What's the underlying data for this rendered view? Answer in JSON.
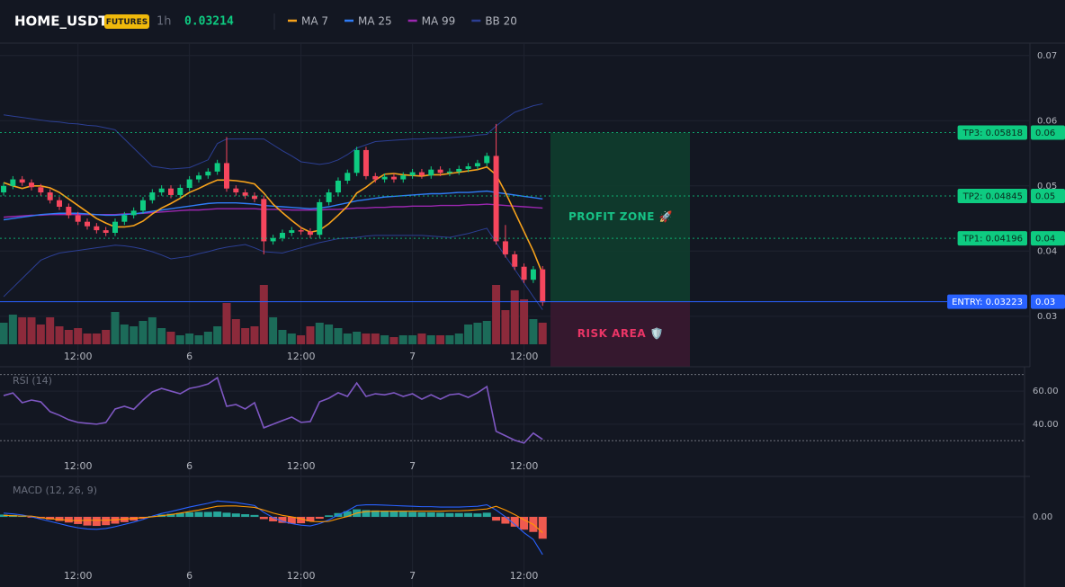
{
  "header": {
    "symbol": "HOME_USDT",
    "badge": "FUTURES",
    "interval": "1h",
    "last_price": 0.03214
  },
  "chart_data": [
    {
      "type": "candlestick",
      "xlim": [
        -0.39,
        110.44
      ],
      "xticks": [
        {
          "value": 8,
          "label": "12:00"
        },
        {
          "value": 20,
          "label": "6"
        },
        {
          "value": 32,
          "label": "12:00"
        },
        {
          "value": 44,
          "label": "7"
        },
        {
          "value": 56,
          "label": "12:00"
        }
      ],
      "ylim": [
        0.0257,
        0.0719
      ],
      "yticks": [
        0.07,
        0.06,
        0.05,
        0.04,
        0.03
      ],
      "grid": true,
      "colors": {
        "up": "#0ecb81",
        "down": "#f6465d"
      },
      "volume_colors": {
        "up": "#1c6b59",
        "down": "#8c2a3b"
      },
      "volume_ylim": [
        0,
        100
      ],
      "open": [
        0.049,
        0.05,
        0.051,
        0.0505,
        0.0498,
        0.049,
        0.0478,
        0.0468,
        0.0455,
        0.0445,
        0.0438,
        0.0432,
        0.0428,
        0.0445,
        0.0455,
        0.0462,
        0.0478,
        0.049,
        0.0496,
        0.0486,
        0.0497,
        0.051,
        0.0516,
        0.0522,
        0.0535,
        0.0496,
        0.049,
        0.0485,
        0.048,
        0.0415,
        0.042,
        0.0428,
        0.0432,
        0.043,
        0.0425,
        0.0475,
        0.049,
        0.0508,
        0.052,
        0.0555,
        0.0515,
        0.051,
        0.0514,
        0.051,
        0.0516,
        0.0521,
        0.0516,
        0.0525,
        0.052,
        0.0522,
        0.0526,
        0.053,
        0.0535,
        0.0546,
        0.0415,
        0.0395,
        0.0376,
        0.0356,
        0.0372
      ],
      "high": [
        0.0505,
        0.0515,
        0.0515,
        0.051,
        0.0503,
        0.0495,
        0.0483,
        0.0473,
        0.046,
        0.045,
        0.0443,
        0.0437,
        0.045,
        0.046,
        0.0467,
        0.0483,
        0.0495,
        0.0501,
        0.0501,
        0.0502,
        0.0515,
        0.0521,
        0.0527,
        0.054,
        0.0575,
        0.0501,
        0.0495,
        0.049,
        0.0485,
        0.0425,
        0.0433,
        0.0437,
        0.0437,
        0.0435,
        0.048,
        0.0495,
        0.0513,
        0.0525,
        0.056,
        0.056,
        0.052,
        0.0519,
        0.0519,
        0.0521,
        0.0526,
        0.0526,
        0.053,
        0.053,
        0.0527,
        0.0531,
        0.0535,
        0.054,
        0.0551,
        0.0595,
        0.044,
        0.04,
        0.0381,
        0.0377,
        0.0377
      ],
      "low": [
        0.0485,
        0.0495,
        0.05,
        0.0493,
        0.0485,
        0.0473,
        0.0463,
        0.045,
        0.044,
        0.0433,
        0.0427,
        0.0423,
        0.0423,
        0.044,
        0.045,
        0.0457,
        0.0473,
        0.0485,
        0.0481,
        0.0481,
        0.0492,
        0.0505,
        0.0511,
        0.0517,
        0.0491,
        0.0485,
        0.048,
        0.0475,
        0.0395,
        0.041,
        0.0415,
        0.0423,
        0.0425,
        0.042,
        0.042,
        0.047,
        0.0485,
        0.0503,
        0.0515,
        0.051,
        0.0505,
        0.0505,
        0.0505,
        0.0505,
        0.0511,
        0.0511,
        0.0511,
        0.0515,
        0.0515,
        0.0517,
        0.0521,
        0.0525,
        0.053,
        0.041,
        0.039,
        0.0371,
        0.0351,
        0.0351,
        0.0316
      ],
      "close": [
        0.05,
        0.051,
        0.0505,
        0.0498,
        0.049,
        0.0478,
        0.0468,
        0.0455,
        0.0445,
        0.0438,
        0.0432,
        0.0428,
        0.0445,
        0.0455,
        0.0462,
        0.0478,
        0.049,
        0.0496,
        0.0486,
        0.0497,
        0.051,
        0.0516,
        0.0522,
        0.0535,
        0.0496,
        0.049,
        0.0485,
        0.048,
        0.0415,
        0.042,
        0.0428,
        0.0432,
        0.043,
        0.0425,
        0.0475,
        0.049,
        0.0508,
        0.052,
        0.0555,
        0.0515,
        0.051,
        0.0514,
        0.051,
        0.0516,
        0.0521,
        0.0516,
        0.0525,
        0.052,
        0.0522,
        0.0526,
        0.053,
        0.0535,
        0.0546,
        0.0415,
        0.0395,
        0.0376,
        0.0356,
        0.0372,
        0.03214
      ],
      "volume": [
        24,
        33,
        30,
        30,
        22,
        30,
        20,
        16,
        18,
        12,
        12,
        16,
        36,
        22,
        20,
        26,
        30,
        18,
        14,
        10,
        12,
        10,
        14,
        20,
        46,
        28,
        18,
        20,
        66,
        30,
        16,
        12,
        10,
        20,
        24,
        22,
        18,
        12,
        14,
        12,
        12,
        10,
        8,
        10,
        10,
        12,
        10,
        10,
        10,
        12,
        22,
        24,
        26,
        66,
        38,
        60,
        50,
        28,
        24
      ],
      "series": [
        {
          "name": "MA 7",
          "color": "#f7a21b",
          "values": [
            0.0505,
            0.05,
            0.0496,
            0.05,
            0.05,
            0.0497,
            0.049,
            0.048,
            0.047,
            0.046,
            0.045,
            0.0443,
            0.0437,
            0.0437,
            0.0439,
            0.0446,
            0.0457,
            0.0466,
            0.0473,
            0.0481,
            0.049,
            0.0496,
            0.0503,
            0.0509,
            0.0509,
            0.0508,
            0.0506,
            0.0503,
            0.0489,
            0.0472,
            0.0459,
            0.0447,
            0.0436,
            0.0429,
            0.0432,
            0.0442,
            0.0455,
            0.0469,
            0.0489,
            0.0498,
            0.0509,
            0.0518,
            0.0519,
            0.0517,
            0.0516,
            0.0515,
            0.0517,
            0.0517,
            0.0519,
            0.0521,
            0.0523,
            0.0525,
            0.0529,
            0.0517,
            0.049,
            0.046,
            0.043,
            0.04,
            0.0365
          ]
        },
        {
          "name": "MA 25",
          "color": "#2f7cf6",
          "values": [
            0.0448,
            0.045,
            0.0452,
            0.0454,
            0.0456,
            0.0457,
            0.0458,
            0.0458,
            0.0458,
            0.0457,
            0.0456,
            0.0455,
            0.0455,
            0.0456,
            0.0457,
            0.0459,
            0.0461,
            0.0463,
            0.0465,
            0.0467,
            0.0469,
            0.0471,
            0.0473,
            0.0474,
            0.0474,
            0.0474,
            0.0473,
            0.0472,
            0.047,
            0.0469,
            0.0468,
            0.0467,
            0.0466,
            0.0465,
            0.0466,
            0.0468,
            0.0471,
            0.0474,
            0.0477,
            0.0479,
            0.0481,
            0.0483,
            0.0484,
            0.0485,
            0.0486,
            0.0487,
            0.0488,
            0.0488,
            0.0489,
            0.049,
            0.049,
            0.0491,
            0.0492,
            0.049,
            0.0488,
            0.0486,
            0.0484,
            0.0482,
            0.048
          ]
        },
        {
          "name": "MA 99",
          "color": "#9c27b0",
          "values": [
            0.0452,
            0.0453,
            0.0454,
            0.0455,
            0.0455,
            0.0456,
            0.0456,
            0.0456,
            0.0456,
            0.0456,
            0.0456,
            0.0456,
            0.0456,
            0.0457,
            0.0457,
            0.0458,
            0.0459,
            0.046,
            0.0461,
            0.0462,
            0.0463,
            0.0463,
            0.0464,
            0.0465,
            0.0465,
            0.0465,
            0.0465,
            0.0465,
            0.0464,
            0.0464,
            0.0464,
            0.0463,
            0.0463,
            0.0463,
            0.0463,
            0.0464,
            0.0464,
            0.0465,
            0.0466,
            0.0466,
            0.0467,
            0.0467,
            0.0468,
            0.0468,
            0.0469,
            0.0469,
            0.0469,
            0.047,
            0.047,
            0.047,
            0.0471,
            0.0471,
            0.0472,
            0.0471,
            0.047,
            0.0469,
            0.0468,
            0.0467,
            0.0466
          ]
        },
        {
          "name": "BB 20",
          "color": "#2c3f94",
          "upper": [
            0.0609,
            0.0607,
            0.0605,
            0.0603,
            0.0601,
            0.0599,
            0.0598,
            0.0596,
            0.0595,
            0.0593,
            0.0592,
            0.0589,
            0.0586,
            0.0572,
            0.0558,
            0.0544,
            0.053,
            0.0528,
            0.0526,
            0.0527,
            0.0528,
            0.0534,
            0.054,
            0.0565,
            0.0572,
            0.0572,
            0.0572,
            0.0572,
            0.0572,
            0.0563,
            0.0554,
            0.0546,
            0.0537,
            0.0535,
            0.0533,
            0.0535,
            0.054,
            0.0548,
            0.0558,
            0.0563,
            0.0568,
            0.0569,
            0.057,
            0.0571,
            0.0572,
            0.0572,
            0.0573,
            0.0573,
            0.0574,
            0.0575,
            0.0576,
            0.0578,
            0.0579,
            0.0592,
            0.0603,
            0.0613,
            0.0618,
            0.0623,
            0.0626
          ],
          "lower": [
            0.033,
            0.0344,
            0.0358,
            0.0372,
            0.0386,
            0.0392,
            0.0397,
            0.0399,
            0.0401,
            0.0403,
            0.0405,
            0.0407,
            0.0409,
            0.0408,
            0.0406,
            0.0403,
            0.0399,
            0.0394,
            0.0388,
            0.039,
            0.0392,
            0.0396,
            0.0399,
            0.0403,
            0.0406,
            0.0408,
            0.041,
            0.0405,
            0.0399,
            0.0398,
            0.0397,
            0.0401,
            0.0405,
            0.0409,
            0.0413,
            0.0416,
            0.0419,
            0.042,
            0.0421,
            0.0423,
            0.0424,
            0.0424,
            0.0424,
            0.0424,
            0.0424,
            0.0424,
            0.0423,
            0.0422,
            0.0421,
            0.0424,
            0.0427,
            0.0431,
            0.0435,
            0.0413,
            0.0392,
            0.0372,
            0.0351,
            0.033,
            0.031
          ]
        }
      ],
      "levels": [
        {
          "label": "TP3: 0.05818",
          "value": 0.05818,
          "axis_label": "0.06",
          "color": "#0ecb81",
          "text_color": "#0b2a1e",
          "line": "dotted"
        },
        {
          "label": "TP2: 0.04845",
          "value": 0.04845,
          "axis_label": "0.05",
          "color": "#0ecb81",
          "text_color": "#0b2a1e",
          "line": "dotted"
        },
        {
          "label": "TP1: 0.04196",
          "value": 0.04196,
          "axis_label": "0.04",
          "color": "#0ecb81",
          "text_color": "#0b2a1e",
          "line": "dotted"
        },
        {
          "label": "ENTRY: 0.03223",
          "value": 0.03223,
          "axis_label": "0.03",
          "color": "#2962ff",
          "text_color": "#ffffff",
          "line": "solid"
        }
      ],
      "zones": [
        {
          "label": "PROFIT ZONE 🚀",
          "from": 0.05818,
          "to": 0.03223,
          "color": "#0f3d2e",
          "text_color": "#17c286"
        },
        {
          "label": "RISK AREA 🛡️",
          "from": 0.03223,
          "to": 0.0223,
          "color": "#3a1830",
          "text_color": "#ea3566"
        }
      ]
    },
    {
      "type": "line",
      "title": "RSI (14)",
      "color": "#7e57c2",
      "xlim": [
        -0.39,
        110.44
      ],
      "xticks": [
        {
          "value": 8,
          "label": "12:00"
        },
        {
          "value": 20,
          "label": "6"
        },
        {
          "value": 32,
          "label": "12:00"
        },
        {
          "value": 44,
          "label": "7"
        },
        {
          "value": 56,
          "label": "12:00"
        }
      ],
      "ylim": [
        22,
        72
      ],
      "yticks": [
        {
          "value": 60,
          "label": "60.00"
        },
        {
          "value": 40,
          "label": "40.00"
        }
      ],
      "grid": true,
      "hlines": [
        70,
        30
      ],
      "values": [
        57.3,
        58.9,
        53,
        54.6,
        53.5,
        47.6,
        45.4,
        42.7,
        41.1,
        40.5,
        40,
        41,
        49.2,
        50.8,
        49,
        54.6,
        59.5,
        61.6,
        60,
        58.4,
        61.6,
        62.7,
        64.3,
        68.1,
        50.8,
        51.9,
        49.2,
        53,
        37.8,
        40,
        42.2,
        44.3,
        41.1,
        41.6,
        53.5,
        55.7,
        59,
        56.8,
        64.9,
        56.8,
        58.4,
        57.8,
        59,
        56.8,
        58.4,
        55.1,
        57.8,
        55.1,
        57.8,
        58.4,
        56.2,
        59,
        62.7,
        35.7,
        33,
        30.3,
        28.6,
        34.6,
        30.8
      ]
    },
    {
      "type": "macd",
      "title": "MACD (12, 26, 9)",
      "xlim": [
        -0.39,
        110.44
      ],
      "xticks": [
        {
          "value": 8,
          "label": "12:00"
        },
        {
          "value": 20,
          "label": "6"
        },
        {
          "value": 32,
          "label": "12:00"
        },
        {
          "value": 44,
          "label": "7"
        },
        {
          "value": 56,
          "label": "12:00"
        }
      ],
      "ylim": [
        -0.00124,
        0.001
      ],
      "yticks": [
        {
          "value": 0,
          "label": "0.00"
        }
      ],
      "grid": true,
      "colors": {
        "macd": "#2962ff",
        "signal": "#ff9800",
        "up": "#26a69a",
        "down": "#f05a4f"
      },
      "macd": [
        0.0001,
        8e-05,
        5e-05,
        0.0,
        -6e-05,
        -0.00012,
        -0.00018,
        -0.00024,
        -0.00029,
        -0.00032,
        -0.00033,
        -0.00031,
        -0.00026,
        -0.0002,
        -0.00014,
        -7e-05,
        2e-05,
        9e-05,
        0.00014,
        0.0002,
        0.00026,
        0.00031,
        0.00036,
        0.00042,
        0.0004,
        0.00038,
        0.00034,
        0.0003,
        0.00012,
        -2e-05,
        -0.00012,
        -0.00018,
        -0.00022,
        -0.00024,
        -0.00018,
        -8e-05,
        5e-05,
        0.00016,
        0.0003,
        0.00032,
        0.00032,
        0.00031,
        0.0003,
        0.00029,
        0.00028,
        0.00027,
        0.00027,
        0.00026,
        0.00026,
        0.00026,
        0.00027,
        0.00028,
        0.00032,
        0.00018,
        0.0,
        -0.0002,
        -0.00042,
        -0.0006,
        -0.001
      ],
      "signal": [
        4e-05,
        3e-05,
        2e-05,
        2e-05,
        -2e-05,
        -5e-05,
        -7e-05,
        -9e-05,
        -0.0001,
        -9e-05,
        -9e-05,
        -9e-05,
        -8e-05,
        -6e-05,
        -4e-05,
        -2e-05,
        0.0,
        3e-05,
        6e-05,
        0.0001,
        0.00014,
        0.00018,
        0.00023,
        0.00028,
        0.00029,
        0.00029,
        0.00027,
        0.00025,
        0.00018,
        0.0001,
        4e-05,
        0.0,
        -5e-05,
        -0.00012,
        -0.00013,
        -0.00012,
        -5e-05,
        1e-05,
        0.0001,
        0.00014,
        0.00015,
        0.00015,
        0.00015,
        0.00015,
        0.00015,
        0.00015,
        0.00015,
        0.00015,
        0.00016,
        0.00016,
        0.00017,
        0.00019,
        0.00021,
        0.00028,
        0.00018,
        6e-05,
        -8e-05,
        -0.0002,
        -0.00042
      ],
      "histogram": [
        6e-05,
        5e-05,
        3e-05,
        -2e-05,
        -4e-05,
        -7e-05,
        -0.00011,
        -0.00015,
        -0.00019,
        -0.00023,
        -0.00024,
        -0.00022,
        -0.00018,
        -0.00014,
        -0.0001,
        -5e-05,
        2e-05,
        6e-05,
        8e-05,
        0.0001,
        0.00012,
        0.00013,
        0.00013,
        0.00014,
        0.00011,
        9e-05,
        7e-05,
        5e-05,
        -6e-05,
        -0.00012,
        -0.00016,
        -0.00018,
        -0.00017,
        -0.00012,
        -5e-05,
        4e-05,
        0.0001,
        0.00015,
        0.0002,
        0.00018,
        0.00017,
        0.00016,
        0.00015,
        0.00014,
        0.00013,
        0.00012,
        0.00012,
        0.00011,
        0.0001,
        0.0001,
        0.0001,
        9e-05,
        0.00011,
        -0.0001,
        -0.00018,
        -0.00026,
        -0.00034,
        -0.0004,
        -0.00058
      ]
    }
  ]
}
